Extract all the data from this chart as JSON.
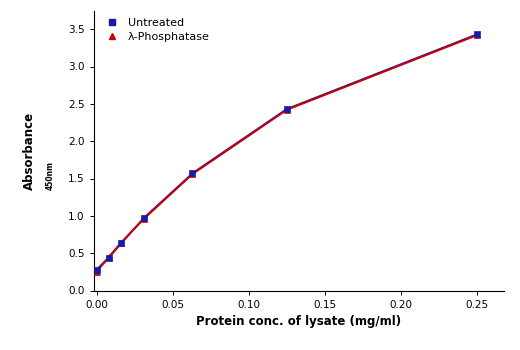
{
  "untreated_x": [
    0.0,
    0.008,
    0.016,
    0.031,
    0.063,
    0.125,
    0.25
  ],
  "untreated_y": [
    0.28,
    0.44,
    0.63,
    0.97,
    1.57,
    2.43,
    3.43
  ],
  "phosphatase_x": [
    0.0,
    0.008,
    0.016,
    0.031,
    0.063,
    0.125,
    0.25
  ],
  "phosphatase_y": [
    0.25,
    0.45,
    0.64,
    0.96,
    1.56,
    2.42,
    3.42
  ],
  "untreated_color": "#1a1aaa",
  "phosphatase_color": "#cc0000",
  "xlabel": "Protein conc. of lysate (mg/ml)",
  "ylabel_main": "Absorbance",
  "ylabel_sub": "450nm",
  "xlim": [
    -0.002,
    0.268
  ],
  "ylim": [
    0.0,
    3.75
  ],
  "xticks": [
    0.0,
    0.05,
    0.1,
    0.15,
    0.2,
    0.25
  ],
  "yticks": [
    0.0,
    0.5,
    1.0,
    1.5,
    2.0,
    2.5,
    3.0,
    3.5
  ],
  "legend_untreated": "Untreated",
  "legend_phosphatase": "λ-Phosphatase",
  "label_fontsize": 8.5,
  "tick_fontsize": 7.5,
  "legend_fontsize": 8
}
